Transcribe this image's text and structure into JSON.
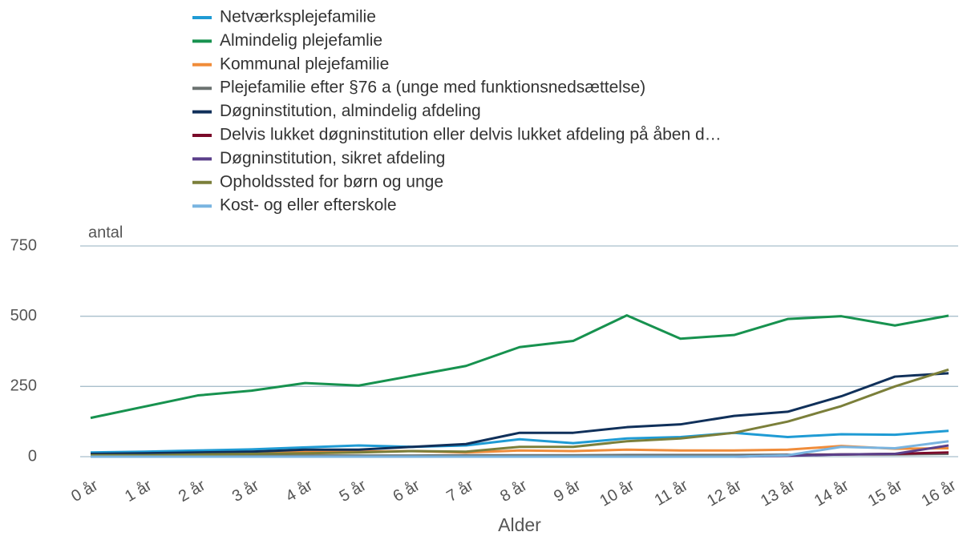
{
  "chart_data": {
    "type": "line",
    "y_label": "antal",
    "x_label": "Alder",
    "categories": [
      "0 år",
      "1 år",
      "2 år",
      "3 år",
      "4 år",
      "5 år",
      "6 år",
      "7 år",
      "8 år",
      "9 år",
      "10 år",
      "11 år",
      "12 år",
      "13 år",
      "14 år",
      "15 år",
      "16 år"
    ],
    "ylim": [
      0,
      750
    ],
    "yticks": [
      0,
      250,
      500,
      750
    ],
    "grid": true,
    "series": [
      {
        "name": "Netværksplejefamilie",
        "color": "#1f9bd4",
        "values": [
          15,
          18,
          22,
          26,
          33,
          40,
          35,
          40,
          62,
          48,
          65,
          70,
          85,
          70,
          80,
          78,
          92
        ]
      },
      {
        "name": "Almindelig plejefamlie",
        "color": "#17924f",
        "values": [
          138,
          178,
          218,
          235,
          262,
          253,
          288,
          323,
          390,
          412,
          503,
          420,
          433,
          490,
          500,
          467,
          502
        ]
      },
      {
        "name": "Kommunal plejefamilie",
        "color": "#f08c3a",
        "values": [
          8,
          10,
          12,
          15,
          18,
          18,
          20,
          15,
          22,
          20,
          25,
          22,
          22,
          25,
          38,
          28,
          30
        ]
      },
      {
        "name": "Plejefamilie efter §76 a (unge med funktionsnedsættelse)",
        "color": "#6b7270",
        "values": [
          2,
          2,
          3,
          3,
          4,
          4,
          4,
          5,
          5,
          5,
          6,
          6,
          6,
          7,
          8,
          8,
          10
        ]
      },
      {
        "name": "Døgninstitution, almindelig afdeling",
        "color": "#10305a",
        "values": [
          10,
          12,
          15,
          18,
          25,
          25,
          35,
          45,
          85,
          85,
          105,
          115,
          145,
          160,
          215,
          285,
          297
        ]
      },
      {
        "name": "Delvis lukket døgninstitution eller delvis lukket afdeling på åben d…",
        "color": "#7a0a2a",
        "values": [
          0,
          0,
          0,
          0,
          0,
          0,
          0,
          0,
          0,
          0,
          0,
          0,
          0,
          5,
          8,
          10,
          15
        ]
      },
      {
        "name": "Døgninstitution, sikret afdeling",
        "color": "#5a3f8a",
        "values": [
          0,
          0,
          0,
          0,
          0,
          0,
          0,
          0,
          0,
          0,
          0,
          0,
          0,
          3,
          8,
          10,
          40
        ]
      },
      {
        "name": "Opholdssted for børn og unge",
        "color": "#7b7f3a",
        "values": [
          5,
          5,
          8,
          10,
          12,
          15,
          20,
          18,
          35,
          35,
          55,
          65,
          85,
          125,
          180,
          250,
          310
        ]
      },
      {
        "name": "Kost- og eller efterskole",
        "color": "#79b4e0",
        "values": [
          0,
          0,
          0,
          0,
          0,
          0,
          0,
          0,
          0,
          0,
          0,
          0,
          0,
          5,
          35,
          30,
          55
        ]
      }
    ]
  }
}
